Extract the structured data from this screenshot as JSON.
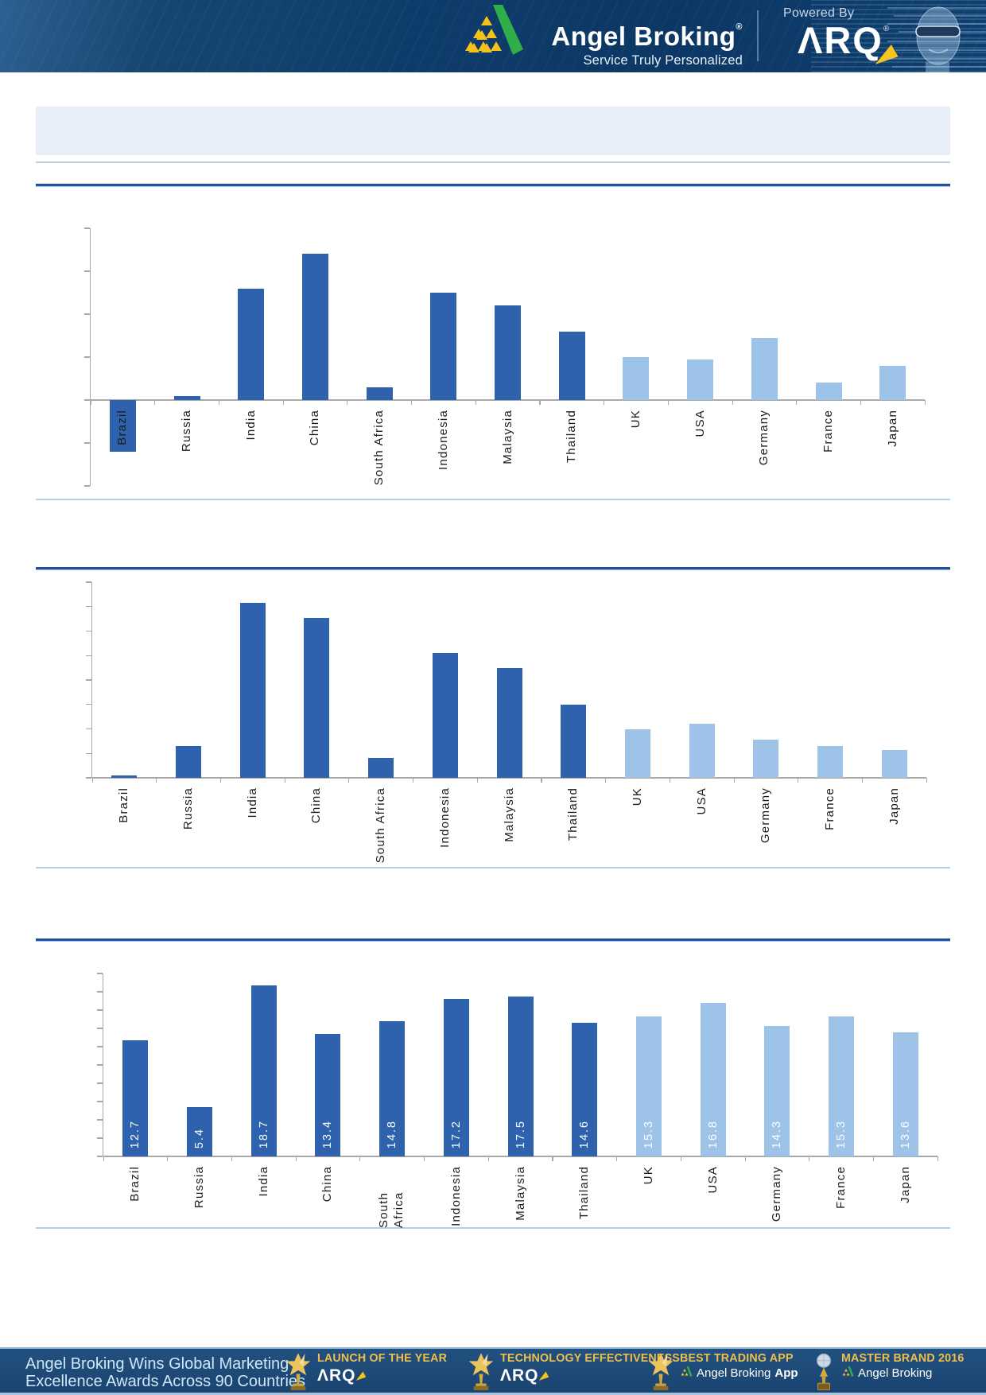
{
  "header": {
    "brand": "Angel Broking",
    "brand_mark": "®",
    "tagline": "Service Truly Personalized",
    "powered_by": "Powered By",
    "product": "ARQ",
    "product_mark": "®"
  },
  "title_box": {
    "text": ""
  },
  "chart_data": [
    {
      "type": "bar",
      "title": "",
      "categories": [
        "Brazil",
        "Russia",
        "India",
        "China",
        "South Africa",
        "Indonesia",
        "Malaysia",
        "Thailand",
        "UK",
        "USA",
        "Germany",
        "France",
        "Japan"
      ],
      "values": [
        -1.2,
        0.1,
        2.6,
        3.4,
        0.3,
        2.5,
        2.2,
        1.6,
        1.0,
        0.95,
        1.45,
        0.4,
        0.8
      ],
      "ylim": [
        -2,
        4
      ],
      "ytick_step": 1,
      "ytick_labels_shown": false,
      "data_labels_shown": false,
      "grid": false,
      "legend": "none",
      "bar_color_dark": "#2e62ac",
      "bar_color_light": "#9ec3e8",
      "light_from_index": 8,
      "note": "y-axis ticks unlabeled; values estimated in tick units"
    },
    {
      "type": "bar",
      "title": "",
      "categories": [
        "Brazil",
        "Russia",
        "India",
        "China",
        "South Africa",
        "Indonesia",
        "Malaysia",
        "Thailand",
        "UK",
        "USA",
        "Germany",
        "France",
        "Japan"
      ],
      "values": [
        0.1,
        1.3,
        7.15,
        6.55,
        0.8,
        5.1,
        4.5,
        3.0,
        2.0,
        2.2,
        1.55,
        1.3,
        1.15
      ],
      "ylim": [
        0,
        8
      ],
      "ytick_step": 1,
      "ytick_labels_shown": false,
      "data_labels_shown": false,
      "grid": false,
      "legend": "none",
      "bar_color_dark": "#2e62ac",
      "bar_color_light": "#9ec3e8",
      "light_from_index": 8,
      "note": "y-axis ticks unlabeled; values estimated in tick units"
    },
    {
      "type": "bar",
      "title": "",
      "categories": [
        "Brazil",
        "Russia",
        "India",
        "China",
        "South Africa",
        "Indonesia",
        "Malaysia",
        "Thailand",
        "UK",
        "USA",
        "Germany",
        "France",
        "Japan"
      ],
      "values": [
        12.7,
        5.4,
        18.7,
        13.4,
        14.8,
        17.2,
        17.5,
        14.6,
        15.3,
        16.8,
        14.3,
        15.3,
        13.6
      ],
      "data_labels": [
        "12.7",
        "5.4",
        "18.7",
        "13.4",
        "14.8",
        "17.2",
        "17.5",
        "14.6",
        "15.3",
        "16.8",
        "14.3",
        "15.3",
        "13.6"
      ],
      "ylim": [
        0,
        20
      ],
      "ytick_step": 2,
      "ytick_labels_shown": false,
      "data_labels_shown": true,
      "data_label_color": "#ffffff",
      "grid": false,
      "legend": "none",
      "bar_color_dark": "#2e62ac",
      "bar_color_light": "#9ec3e8",
      "light_from_index": 8
    }
  ],
  "footer": {
    "headline_line1": "Angel Broking Wins Global Marketing",
    "headline_line2": "Excellence Awards Across 90 Countries",
    "awards": [
      {
        "title": "LAUNCH OF THE YEAR",
        "subtitle": "ARQ",
        "subtitle_bold": "",
        "icon": "trophy-star",
        "subtitle_is_logo": true,
        "subtitle_has_brand_logo": false
      },
      {
        "title": "TECHNOLOGY EFFECTIVENESS",
        "subtitle": "ARQ",
        "subtitle_bold": "",
        "icon": "trophy-star",
        "subtitle_is_logo": true,
        "subtitle_has_brand_logo": false
      },
      {
        "title": "BEST TRADING APP",
        "subtitle": "Angel Broking",
        "subtitle_bold": "App",
        "icon": "trophy-star",
        "subtitle_is_logo": false,
        "subtitle_has_brand_logo": true
      },
      {
        "title": "MASTER BRAND 2016",
        "subtitle": "Angel Broking",
        "subtitle_bold": "",
        "icon": "trophy-globe",
        "subtitle_is_logo": false,
        "subtitle_has_brand_logo": true
      }
    ]
  }
}
